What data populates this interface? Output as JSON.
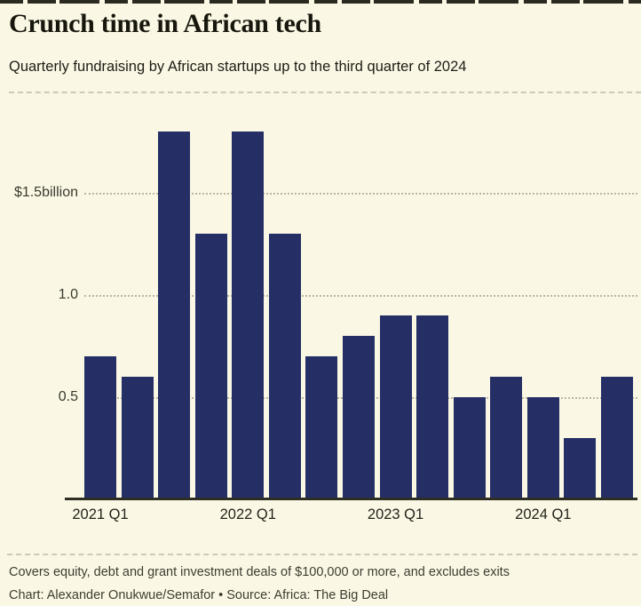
{
  "header": {
    "title": "Crunch time in African tech",
    "subtitle": "Quarterly fundraising by African startups up to the third quarter of 2024"
  },
  "footer": {
    "note": "Covers equity, debt and grant investment deals of $100,000 or more, and excludes exits",
    "credit": "Chart: Alexander Onukwue/Semafor • Source: Africa: The Big Deal"
  },
  "colors": {
    "background": "#faf8e4",
    "bar": "#252f66",
    "axis": "#2e2e23",
    "gridline": "#b9b6a4"
  },
  "chart_data": {
    "type": "bar",
    "title": "Crunch time in African tech",
    "subtitle": "Quarterly fundraising by African startups up to the third quarter of 2024",
    "unit": "US$ billions",
    "categories": [
      "2021 Q1",
      "2021 Q2",
      "2021 Q3",
      "2021 Q4",
      "2022 Q1",
      "2022 Q2",
      "2022 Q3",
      "2022 Q4",
      "2023 Q1",
      "2023 Q2",
      "2023 Q3",
      "2023 Q4",
      "2024 Q1",
      "2024 Q2",
      "2024 Q3"
    ],
    "values": [
      0.7,
      0.6,
      1.8,
      1.3,
      1.8,
      1.3,
      0.7,
      0.8,
      0.9,
      0.9,
      0.5,
      0.6,
      0.5,
      0.3,
      0.6
    ],
    "ylim": [
      0,
      1.9
    ],
    "yticks": [
      {
        "value": 1.5,
        "label": "$1.5billion"
      },
      {
        "value": 1.0,
        "label": "1.0"
      },
      {
        "value": 0.5,
        "label": "0.5"
      }
    ],
    "xticks": [
      {
        "index": 0,
        "label": "2021 Q1"
      },
      {
        "index": 4,
        "label": "2022 Q1"
      },
      {
        "index": 8,
        "label": "2023 Q1"
      },
      {
        "index": 12,
        "label": "2024 Q1"
      }
    ],
    "grid": "dotted-horizontal",
    "legend": "none"
  }
}
